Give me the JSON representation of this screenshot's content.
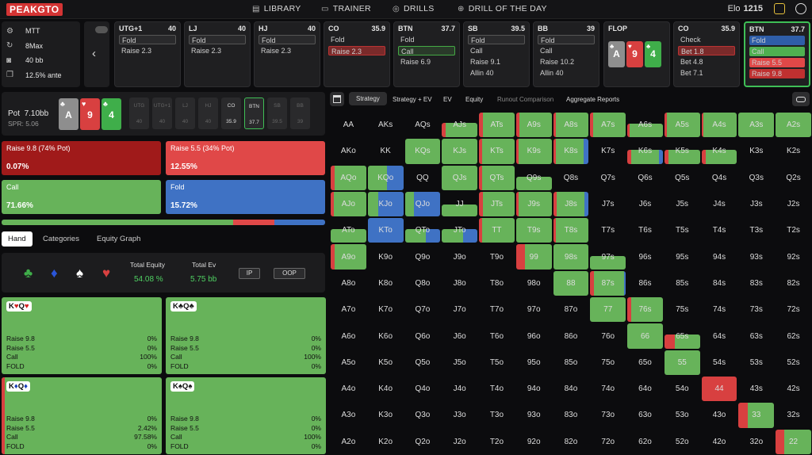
{
  "topbar": {
    "logo": "PEAKGTO",
    "nav": [
      {
        "icon": "book-icon",
        "label": "LIBRARY",
        "x": "x"
      },
      {
        "icon": "controller-icon",
        "label": "TRAINER"
      },
      {
        "icon": "target-icon",
        "label": "DRILLS"
      },
      {
        "icon": "plus-circle-icon",
        "label": "DRILL OF THE DAY"
      }
    ],
    "elo_label": "Elo",
    "elo_value": "1215"
  },
  "config": {
    "format": "MTT",
    "players": "8Max",
    "stack": "40 bb",
    "ante": "12.5% ante"
  },
  "positions": [
    {
      "name": "UTG+1",
      "stack": "40",
      "actions": [
        "Fold",
        "Raise 2.3"
      ],
      "sel": 0
    },
    {
      "name": "LJ",
      "stack": "40",
      "actions": [
        "Fold",
        "Raise 2.3"
      ],
      "sel": 0
    },
    {
      "name": "HJ",
      "stack": "40",
      "actions": [
        "Fold",
        "Raise 2.3"
      ],
      "sel": 0
    },
    {
      "name": "CO",
      "stack": "35.9",
      "actions": [
        "Fold",
        "Raise 2.3"
      ],
      "sel": 1
    },
    {
      "name": "BTN",
      "stack": "37.7",
      "actions": [
        "Fold",
        "Call",
        "Raise 6.9"
      ],
      "sel": 1
    },
    {
      "name": "SB",
      "stack": "39.5",
      "actions": [
        "Fold",
        "Call",
        "Raise 9.1",
        "Allin 40"
      ],
      "sel": 0
    },
    {
      "name": "BB",
      "stack": "39",
      "actions": [
        "Fold",
        "Call",
        "Raise 10.2",
        "Allin 40"
      ],
      "sel": 0
    },
    {
      "name": "FLOP",
      "stack": "",
      "actions": [],
      "sel": -1
    },
    {
      "name": "CO",
      "stack": "35.9",
      "actions": [
        "Check",
        "Bet 1.8",
        "Bet 4.8",
        "Bet 7.1"
      ],
      "sel": 1
    },
    {
      "name": "BTN",
      "stack": "37.7",
      "actions": [
        "Fold",
        "Call",
        "Raise 5.5",
        "Raise 9.8"
      ],
      "sel": -1
    }
  ],
  "flop": [
    {
      "rank": "A",
      "suit": "♣",
      "color": "#8e8e8e"
    },
    {
      "rank": "9",
      "suit": "♥",
      "color": "#d84040"
    },
    {
      "rank": "4",
      "suit": "♣",
      "color": "#3fae4a"
    }
  ],
  "pot": {
    "label": "Pot",
    "value": "7.10bb",
    "spr": "SPR: 5.06"
  },
  "hero_cards": [
    {
      "rank": "A",
      "suit": "♣",
      "color": "#8e8e8e"
    },
    {
      "rank": "9",
      "suit": "♥",
      "color": "#d84040"
    },
    {
      "rank": "4",
      "suit": "♣",
      "color": "#3fae4a"
    }
  ],
  "seats": [
    {
      "pos": "UTG",
      "stack": "40"
    },
    {
      "pos": "UTG+1",
      "stack": "40"
    },
    {
      "pos": "LJ",
      "stack": "40"
    },
    {
      "pos": "HJ",
      "stack": "40"
    },
    {
      "pos": "CO",
      "stack": "35.9"
    },
    {
      "pos": "BTN",
      "stack": "37.7"
    },
    {
      "pos": "SB",
      "stack": "39.5"
    },
    {
      "pos": "BB",
      "stack": "39"
    }
  ],
  "actions": [
    {
      "label": "Raise 9.8 (74% Pot)",
      "freq": "0.07%",
      "freq_value": 0.07,
      "color": "#a01a1a"
    },
    {
      "label": "Raise 5.5 (34% Pot)",
      "freq": "12.55%",
      "freq_value": 12.55,
      "color": "#e04848"
    },
    {
      "label": "Call",
      "freq": "71.66%",
      "freq_value": 71.66,
      "color": "#67b35a"
    },
    {
      "label": "Fold",
      "freq": "15.72%",
      "freq_value": 15.72,
      "color": "#3f72c4"
    }
  ],
  "tabs": [
    "Hand",
    "Categories",
    "Equity Graph"
  ],
  "equity": {
    "suits": [
      {
        "icon": "club-icon",
        "glyph": "♣",
        "color": "#3fae4a"
      },
      {
        "icon": "diamond-icon",
        "glyph": "♦",
        "color": "#2a55d8"
      },
      {
        "icon": "spade-icon",
        "glyph": "♠",
        "color": "#ffffff"
      },
      {
        "icon": "heart-icon",
        "glyph": "♥",
        "color": "#d84040"
      }
    ],
    "total_equity_label": "Total Equity",
    "total_equity": "54.08 %",
    "total_ev_label": "Total Ev",
    "total_ev": "5.75 bb",
    "ip": "IP",
    "oop": "OOP"
  },
  "combos": [
    {
      "hand": "K♥Q♥",
      "ranks": [
        "K",
        "Q"
      ],
      "suits": [
        "♥",
        "♥"
      ],
      "suitclass": "",
      "rows": [
        [
          "Raise 9.8",
          "0%"
        ],
        [
          "Raise 5.5",
          "0%"
        ],
        [
          "Call",
          "100%"
        ],
        [
          "FOLD",
          "0%"
        ]
      ],
      "red": false
    },
    {
      "hand": "K♣Q♣",
      "ranks": [
        "K",
        "Q"
      ],
      "suits": [
        "♣",
        "♣"
      ],
      "suitclass": "bk",
      "rows": [
        [
          "Raise 9.8",
          "0%"
        ],
        [
          "Raise 5.5",
          "0%"
        ],
        [
          "Call",
          "100%"
        ],
        [
          "FOLD",
          "0%"
        ]
      ],
      "red": false
    },
    {
      "hand": "K♦Q♦",
      "ranks": [
        "K",
        "Q"
      ],
      "suits": [
        "♦",
        "♦"
      ],
      "suitclass": "bl",
      "rows": [
        [
          "Raise 9.8",
          "0%"
        ],
        [
          "Raise 5.5",
          "2.42%"
        ],
        [
          "Call",
          "97.58%"
        ],
        [
          "FOLD",
          "0%"
        ]
      ],
      "red": true
    },
    {
      "hand": "K♠Q♠",
      "ranks": [
        "K",
        "Q"
      ],
      "suits": [
        "♠",
        "♠"
      ],
      "suitclass": "bk",
      "rows": [
        [
          "Raise 9.8",
          "0%"
        ],
        [
          "Raise 5.5",
          "0%"
        ],
        [
          "Call",
          "100%"
        ],
        [
          "FOLD",
          "0%"
        ]
      ],
      "red": false
    }
  ],
  "strategy_tabs": [
    "Strategy",
    "Strategy + EV",
    "EV",
    "Equity",
    "Runout Comparison",
    "Aggregate Reports"
  ],
  "matrix": {
    "ranks": [
      "A",
      "K",
      "Q",
      "J",
      "T",
      "9",
      "8",
      "7",
      "6",
      "5",
      "4",
      "3",
      "2"
    ],
    "cells": {
      "AJs": {
        "fill": 0.6,
        "mix": [
          [
            10,
            "#d84040"
          ],
          [
            90,
            "#67b35a"
          ]
        ]
      },
      "ATs": {
        "fill": 1,
        "mix": [
          [
            10,
            "#d84040"
          ],
          [
            90,
            "#67b35a"
          ]
        ]
      },
      "A9s": {
        "fill": 1,
        "mix": [
          [
            10,
            "#d84040"
          ],
          [
            90,
            "#67b35a"
          ]
        ]
      },
      "A8s": {
        "fill": 1,
        "mix": [
          [
            8,
            "#d84040"
          ],
          [
            92,
            "#67b35a"
          ]
        ]
      },
      "A7s": {
        "fill": 1,
        "mix": [
          [
            8,
            "#d84040"
          ],
          [
            92,
            "#67b35a"
          ]
        ]
      },
      "A6s": {
        "fill": 0.55,
        "mix": [
          [
            6,
            "#d84040"
          ],
          [
            94,
            "#67b35a"
          ]
        ]
      },
      "A5s": {
        "fill": 1,
        "mix": [
          [
            6,
            "#d84040"
          ],
          [
            94,
            "#67b35a"
          ]
        ]
      },
      "A4s": {
        "fill": 1,
        "mix": [
          [
            6,
            "#d84040"
          ],
          [
            94,
            "#67b35a"
          ]
        ]
      },
      "A3s": {
        "fill": 1,
        "mix": [
          [
            100,
            "#67b35a"
          ]
        ]
      },
      "A2s": {
        "fill": 1,
        "mix": [
          [
            100,
            "#67b35a"
          ]
        ]
      },
      "KQs": {
        "fill": 1,
        "mix": [
          [
            100,
            "#67b35a"
          ]
        ]
      },
      "KJs": {
        "fill": 1,
        "mix": [
          [
            100,
            "#67b35a"
          ]
        ]
      },
      "KTs": {
        "fill": 1,
        "mix": [
          [
            8,
            "#d84040"
          ],
          [
            92,
            "#67b35a"
          ]
        ]
      },
      "K9s": {
        "fill": 1,
        "mix": [
          [
            8,
            "#d84040"
          ],
          [
            92,
            "#67b35a"
          ]
        ]
      },
      "K8s": {
        "fill": 1,
        "mix": [
          [
            8,
            "#d84040"
          ],
          [
            77,
            "#67b35a"
          ],
          [
            15,
            "#3f72c4"
          ]
        ]
      },
      "K6s": {
        "fill": 0.55,
        "mix": [
          [
            10,
            "#d84040"
          ],
          [
            80,
            "#67b35a"
          ],
          [
            10,
            "#3f72c4"
          ]
        ]
      },
      "K5s": {
        "fill": 0.55,
        "mix": [
          [
            12,
            "#d84040"
          ],
          [
            88,
            "#67b35a"
          ]
        ]
      },
      "K4s": {
        "fill": 0.55,
        "mix": [
          [
            12,
            "#d84040"
          ],
          [
            88,
            "#67b35a"
          ]
        ]
      },
      "AQo": {
        "fill": 1,
        "mix": [
          [
            12,
            "#d84040"
          ],
          [
            88,
            "#67b35a"
          ]
        ]
      },
      "KQo": {
        "fill": 1,
        "mix": [
          [
            55,
            "#67b35a"
          ],
          [
            45,
            "#3f72c4"
          ]
        ]
      },
      "QJs": {
        "fill": 1,
        "mix": [
          [
            100,
            "#67b35a"
          ]
        ]
      },
      "QTs": {
        "fill": 1,
        "mix": [
          [
            8,
            "#d84040"
          ],
          [
            92,
            "#67b35a"
          ]
        ]
      },
      "Q9s": {
        "fill": 0.55,
        "mix": [
          [
            100,
            "#67b35a"
          ]
        ]
      },
      "AJo": {
        "fill": 1,
        "mix": [
          [
            8,
            "#d84040"
          ],
          [
            92,
            "#67b35a"
          ]
        ]
      },
      "KJo": {
        "fill": 1,
        "mix": [
          [
            30,
            "#67b35a"
          ],
          [
            70,
            "#3f72c4"
          ]
        ]
      },
      "QJo": {
        "fill": 1,
        "mix": [
          [
            25,
            "#67b35a"
          ],
          [
            75,
            "#3f72c4"
          ]
        ]
      },
      "JJ": {
        "fill": 0.5,
        "mix": [
          [
            100,
            "#67b35a"
          ]
        ]
      },
      "JTs": {
        "fill": 1,
        "mix": [
          [
            10,
            "#d84040"
          ],
          [
            90,
            "#67b35a"
          ]
        ]
      },
      "J9s": {
        "fill": 1,
        "mix": [
          [
            8,
            "#d84040"
          ],
          [
            92,
            "#67b35a"
          ]
        ]
      },
      "J8s": {
        "fill": 1,
        "mix": [
          [
            10,
            "#d84040"
          ],
          [
            78,
            "#67b35a"
          ],
          [
            12,
            "#3f72c4"
          ]
        ]
      },
      "ATo": {
        "fill": 0.55,
        "mix": [
          [
            100,
            "#67b35a"
          ]
        ]
      },
      "KTo": {
        "fill": 1,
        "mix": [
          [
            100,
            "#3f72c4"
          ]
        ]
      },
      "QTo": {
        "fill": 0.55,
        "mix": [
          [
            60,
            "#67b35a"
          ],
          [
            40,
            "#3f72c4"
          ]
        ]
      },
      "JTo": {
        "fill": 0.55,
        "mix": [
          [
            60,
            "#67b35a"
          ],
          [
            40,
            "#3f72c4"
          ]
        ]
      },
      "TT": {
        "fill": 1,
        "mix": [
          [
            8,
            "#d84040"
          ],
          [
            92,
            "#67b35a"
          ]
        ]
      },
      "T9s": {
        "fill": 1,
        "mix": [
          [
            100,
            "#67b35a"
          ]
        ]
      },
      "T8s": {
        "fill": 1,
        "mix": [
          [
            8,
            "#d84040"
          ],
          [
            92,
            "#67b35a"
          ]
        ]
      },
      "A9o": {
        "fill": 1,
        "mix": [
          [
            12,
            "#d84040"
          ],
          [
            88,
            "#67b35a"
          ]
        ]
      },
      "99": {
        "fill": 1,
        "mix": [
          [
            25,
            "#d84040"
          ],
          [
            75,
            "#67b35a"
          ]
        ]
      },
      "98s": {
        "fill": 1,
        "mix": [
          [
            100,
            "#67b35a"
          ]
        ]
      },
      "97s": {
        "fill": 0.55,
        "mix": [
          [
            100,
            "#67b35a"
          ]
        ]
      },
      "88": {
        "fill": 1,
        "mix": [
          [
            100,
            "#67b35a"
          ]
        ]
      },
      "87s": {
        "fill": 1,
        "mix": [
          [
            10,
            "#d84040"
          ],
          [
            85,
            "#67b35a"
          ],
          [
            5,
            "#3f72c4"
          ]
        ]
      },
      "77": {
        "fill": 1,
        "mix": [
          [
            100,
            "#67b35a"
          ]
        ]
      },
      "76s": {
        "fill": 1,
        "mix": [
          [
            10,
            "#d84040"
          ],
          [
            90,
            "#67b35a"
          ]
        ]
      },
      "66": {
        "fill": 1,
        "mix": [
          [
            100,
            "#67b35a"
          ]
        ]
      },
      "65s": {
        "fill": 0.55,
        "mix": [
          [
            30,
            "#d84040"
          ],
          [
            70,
            "#67b35a"
          ]
        ]
      },
      "55": {
        "fill": 1,
        "mix": [
          [
            100,
            "#67b35a"
          ]
        ]
      },
      "44": {
        "fill": 1,
        "mix": [
          [
            100,
            "#d84040"
          ]
        ]
      },
      "33": {
        "fill": 1,
        "mix": [
          [
            25,
            "#d84040"
          ],
          [
            75,
            "#67b35a"
          ]
        ]
      },
      "22": {
        "fill": 1,
        "mix": [
          [
            25,
            "#d84040"
          ],
          [
            75,
            "#67b35a"
          ]
        ]
      }
    }
  }
}
